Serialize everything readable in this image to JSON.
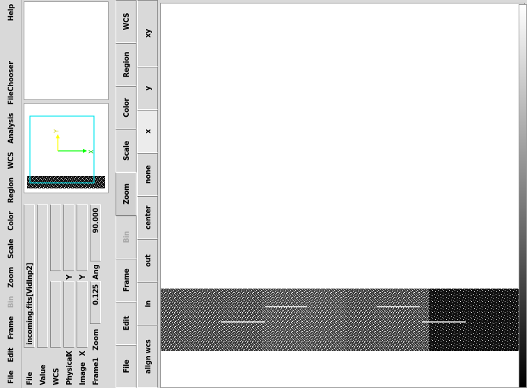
{
  "menubar": {
    "items": [
      {
        "label": "File",
        "enabled": true
      },
      {
        "label": "Edit",
        "enabled": true
      },
      {
        "label": "Frame",
        "enabled": true
      },
      {
        "label": "Bin",
        "enabled": false
      },
      {
        "label": "Zoom",
        "enabled": true
      },
      {
        "label": "Scale",
        "enabled": true
      },
      {
        "label": "Color",
        "enabled": true
      },
      {
        "label": "Region",
        "enabled": true
      },
      {
        "label": "WCS",
        "enabled": true
      },
      {
        "label": "Analysis",
        "enabled": true
      },
      {
        "label": "FileChooser",
        "enabled": true
      }
    ],
    "help": "Help"
  },
  "info": {
    "file_label": "File",
    "file_value": "incoming.fits[VidInp2]",
    "value_label": "Value",
    "wcs_label": "WCS",
    "physical_label": "Physical",
    "physical_x": "X",
    "physical_y": "Y",
    "image_label": "Image",
    "image_x": "X",
    "image_y": "Y",
    "frame_label": "Frame1",
    "zoom_label": "Zoom",
    "zoom_value": "0.125",
    "angle_label": "Ang",
    "angle_value": "90.000"
  },
  "panner": {
    "x_axis": "X",
    "y_axis": "Y",
    "frame_color": "#00e5ee",
    "x_color": "#00ff00",
    "y_color": "#ffff00"
  },
  "buttons": {
    "row1": [
      {
        "label": "File",
        "enabled": true
      },
      {
        "label": "Edit",
        "enabled": true
      },
      {
        "label": "Frame",
        "enabled": true
      },
      {
        "label": "Bin",
        "enabled": false
      },
      {
        "label": "Zoom",
        "enabled": true,
        "active": true
      },
      {
        "label": "Scale",
        "enabled": true
      },
      {
        "label": "Color",
        "enabled": true
      },
      {
        "label": "Region",
        "enabled": true
      },
      {
        "label": "WCS",
        "enabled": true
      }
    ],
    "row2": [
      {
        "label": "align wcs"
      },
      {
        "label": "in"
      },
      {
        "label": "out"
      },
      {
        "label": "center"
      },
      {
        "label": "none"
      },
      {
        "label": "x",
        "selected": true
      },
      {
        "label": "y"
      },
      {
        "label": "xy"
      }
    ]
  }
}
